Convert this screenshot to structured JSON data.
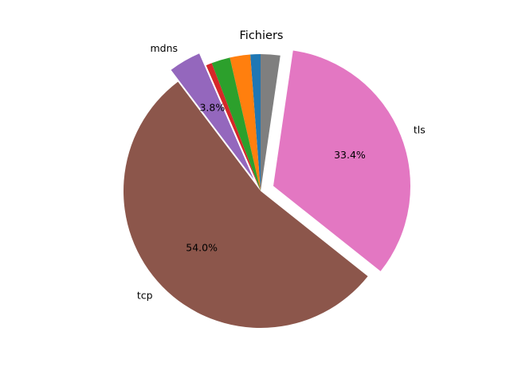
{
  "chart_data": {
    "type": "pie",
    "title": "Fichiers",
    "slices": [
      {
        "label": "",
        "value": 1.2,
        "color": "#1f77b4",
        "pct_label": "",
        "explode": false
      },
      {
        "label": "",
        "value": 2.4,
        "color": "#ff7f0e",
        "pct_label": "",
        "explode": false
      },
      {
        "label": "",
        "value": 2.2,
        "color": "#2ca02c",
        "pct_label": "",
        "explode": false
      },
      {
        "label": "",
        "value": 0.7,
        "color": "#d62728",
        "pct_label": "",
        "explode": false
      },
      {
        "label": "mdns",
        "value": 3.8,
        "color": "#9467bd",
        "pct_label": "3.8%",
        "explode": true
      },
      {
        "label": "tcp",
        "value": 54.0,
        "color": "#8c564b",
        "pct_label": "54.0%",
        "explode": false
      },
      {
        "label": "tls",
        "value": 33.4,
        "color": "#e377c2",
        "pct_label": "33.4%",
        "explode": true
      },
      {
        "label": "",
        "value": 2.3,
        "color": "#7f7f7f",
        "pct_label": "",
        "explode": false
      }
    ],
    "start_angle_deg": 90,
    "direction": "counterclockwise",
    "legend": "none"
  }
}
